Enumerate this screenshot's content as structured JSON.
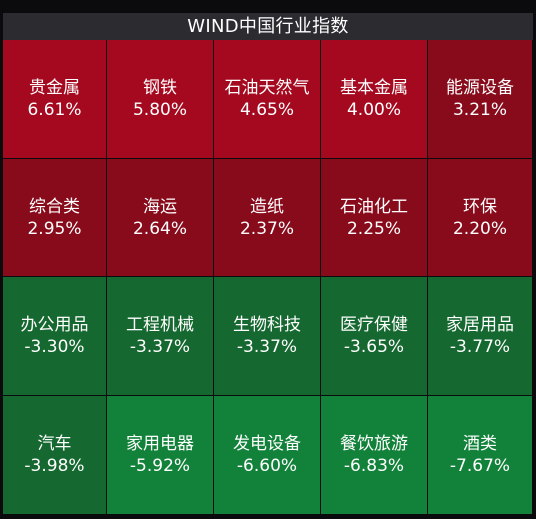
{
  "title": "WIND中国行业指数",
  "rows": [
    [
      {
        "name": "贵金属",
        "pct": "6.61%",
        "color": "#a5091f"
      },
      {
        "name": "钢铁",
        "pct": "5.80%",
        "color": "#a5091f"
      },
      {
        "name": "石油天然气",
        "pct": "4.65%",
        "color": "#a5091f"
      },
      {
        "name": "基本金属",
        "pct": "4.00%",
        "color": "#a5091f"
      },
      {
        "name": "能源设备",
        "pct": "3.21%",
        "color": "#880b1c"
      }
    ],
    [
      {
        "name": "综合类",
        "pct": "2.95%",
        "color": "#880b1c"
      },
      {
        "name": "海运",
        "pct": "2.64%",
        "color": "#880b1c"
      },
      {
        "name": "造纸",
        "pct": "2.37%",
        "color": "#880b1c"
      },
      {
        "name": "石油化工",
        "pct": "2.25%",
        "color": "#880b1c"
      },
      {
        "name": "环保",
        "pct": "2.20%",
        "color": "#880b1c"
      }
    ],
    [
      {
        "name": "办公用品",
        "pct": "-3.30%",
        "color": "#15682f"
      },
      {
        "name": "工程机械",
        "pct": "-3.37%",
        "color": "#15682f"
      },
      {
        "name": "生物科技",
        "pct": "-3.37%",
        "color": "#15682f"
      },
      {
        "name": "医疗保健",
        "pct": "-3.65%",
        "color": "#15682f"
      },
      {
        "name": "家居用品",
        "pct": "-3.77%",
        "color": "#15682f"
      }
    ],
    [
      {
        "name": "汽车",
        "pct": "-3.98%",
        "color": "#15682f"
      },
      {
        "name": "家用电器",
        "pct": "-5.92%",
        "color": "#12823a"
      },
      {
        "name": "发电设备",
        "pct": "-6.60%",
        "color": "#12823a"
      },
      {
        "name": "餐饮旅游",
        "pct": "-6.83%",
        "color": "#12823a"
      },
      {
        "name": "酒类",
        "pct": "-7.67%",
        "color": "#12823a"
      }
    ]
  ]
}
